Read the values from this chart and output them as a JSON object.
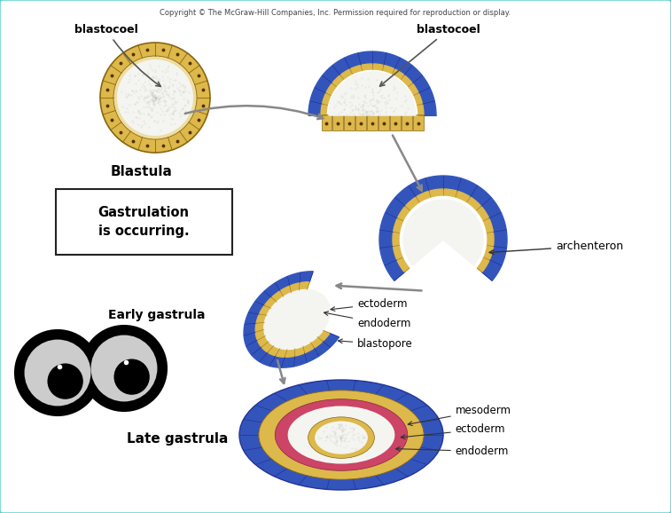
{
  "copyright_text": "Copyright © The McGraw-Hill Companies, Inc. Permission required for reproduction or display.",
  "bg_color": "#ffffff",
  "border_color": "#55d0d0",
  "colors": {
    "blue": "#3355bb",
    "blue_dark": "#223399",
    "yellow": "#ddb84a",
    "yellow_light": "#eedda0",
    "white_int": "#f4f4f0",
    "pink": "#cc4466",
    "arrow": "#888888",
    "black": "#111111",
    "gray_eye": "#cccccc"
  },
  "labels": {
    "blastocoel1": "blastocoel",
    "blastocoel2": "blastocoel",
    "blastula": "Blastula",
    "gastrulation_box": "Gastrulation\nis occurring.",
    "archenteron": "archenteron",
    "early_gastrula": "Early gastrula",
    "ectoderm": "ectoderm",
    "endoderm": "endoderm",
    "blastopore": "blastopore",
    "late_gastrula": "Late gastrula",
    "mesoderm": "mesoderm",
    "ectoderm2": "ectoderm",
    "endoderm2": "endoderm"
  }
}
